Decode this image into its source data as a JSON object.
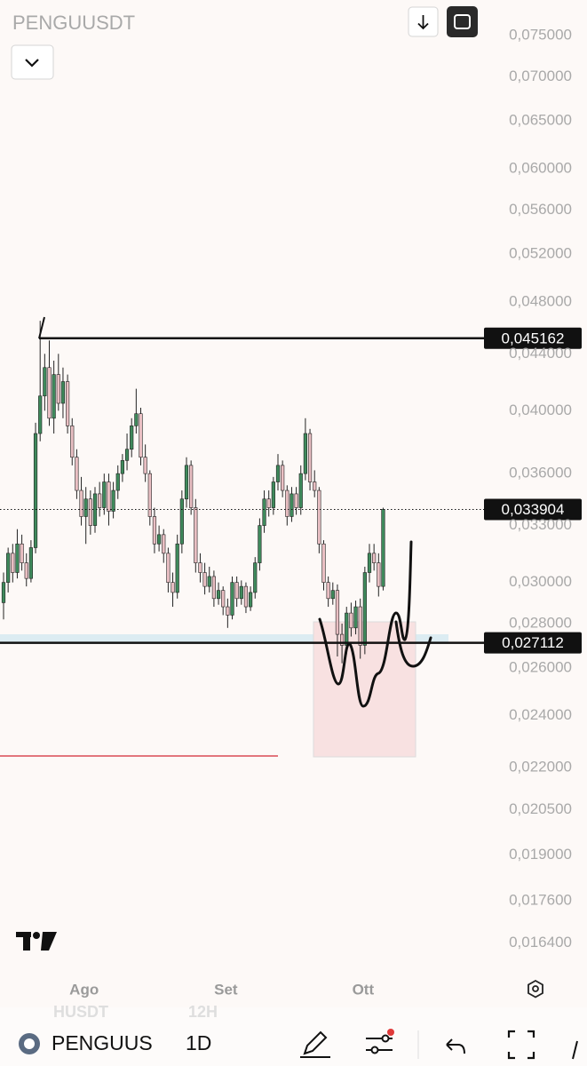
{
  "header": {
    "title": "PENGUUSDT"
  },
  "chart_data": {
    "type": "candlestick",
    "categories": [
      null,
      null,
      null,
      null,
      null,
      null,
      null,
      null,
      null,
      null,
      null,
      null,
      null,
      null,
      null,
      null,
      null,
      null,
      "Ago",
      null,
      null,
      null,
      null,
      null,
      null,
      null,
      null,
      null,
      null,
      null,
      null,
      null,
      null,
      null,
      null,
      null,
      null,
      null,
      null,
      null,
      null,
      null,
      null,
      null,
      null,
      null,
      null,
      null,
      null,
      "Set",
      null,
      null,
      null,
      null,
      null,
      null,
      null,
      null,
      null,
      null,
      null,
      null,
      null,
      null,
      null,
      null,
      null,
      null,
      null,
      null,
      null,
      null,
      null,
      null,
      null,
      null,
      null,
      null,
      null,
      "Ott",
      null,
      null,
      null,
      null
    ],
    "open": [
      0.029,
      0.03,
      0.0315,
      0.0305,
      0.032,
      0.031,
      0.0302,
      0.0318,
      0.0385,
      0.041,
      0.043,
      0.0395,
      0.0425,
      0.0405,
      0.042,
      0.039,
      0.037,
      0.035,
      0.0335,
      0.0345,
      0.033,
      0.0348,
      0.034,
      0.0355,
      0.0338,
      0.035,
      0.036,
      0.0368,
      0.0375,
      0.039,
      0.0398,
      0.037,
      0.036,
      0.0335,
      0.032,
      0.0325,
      0.0315,
      0.03,
      0.0295,
      0.032,
      0.0345,
      0.0365,
      0.034,
      0.031,
      0.0305,
      0.0298,
      0.0303,
      0.0292,
      0.0296,
      0.0288,
      0.0284,
      0.03,
      0.0292,
      0.0298,
      0.0288,
      0.0295,
      0.031,
      0.033,
      0.0345,
      0.034,
      0.0355,
      0.0365,
      0.035,
      0.0335,
      0.0348,
      0.034,
      0.036,
      0.0385,
      0.0355,
      0.035,
      0.032,
      0.03,
      0.0292,
      0.0296,
      0.0275,
      0.027,
      0.0285,
      0.0278,
      0.0288,
      0.027,
      0.0305,
      0.0315,
      0.031,
      0.0298
    ],
    "high": [
      0.0305,
      0.0318,
      0.032,
      0.0328,
      0.0325,
      0.0315,
      0.0322,
      0.0392,
      0.0465,
      0.044,
      0.045,
      0.0435,
      0.044,
      0.043,
      0.0425,
      0.0395,
      0.0375,
      0.0358,
      0.0352,
      0.035,
      0.0352,
      0.0355,
      0.036,
      0.036,
      0.0355,
      0.0365,
      0.0372,
      0.0385,
      0.0395,
      0.0415,
      0.0402,
      0.0378,
      0.0362,
      0.034,
      0.033,
      0.0328,
      0.0318,
      0.0305,
      0.0325,
      0.035,
      0.037,
      0.0368,
      0.0345,
      0.0315,
      0.031,
      0.0308,
      0.0306,
      0.03,
      0.0298,
      0.0292,
      0.0303,
      0.0303,
      0.0301,
      0.03,
      0.0298,
      0.0313,
      0.0334,
      0.035,
      0.035,
      0.0358,
      0.0372,
      0.0368,
      0.0353,
      0.0352,
      0.0352,
      0.0365,
      0.0395,
      0.0388,
      0.0362,
      0.0352,
      0.0322,
      0.0303,
      0.03,
      0.0299,
      0.028,
      0.0288,
      0.029,
      0.0291,
      0.0292,
      0.0308,
      0.032,
      0.032,
      0.0315,
      0.034
    ],
    "low": [
      0.0282,
      0.0295,
      0.03,
      0.0302,
      0.0306,
      0.0298,
      0.03,
      0.0315,
      0.038,
      0.04,
      0.039,
      0.0385,
      0.04,
      0.0395,
      0.0385,
      0.0365,
      0.0345,
      0.033,
      0.032,
      0.0325,
      0.0326,
      0.0335,
      0.0336,
      0.033,
      0.0334,
      0.0345,
      0.0355,
      0.0362,
      0.037,
      0.0385,
      0.0365,
      0.0355,
      0.033,
      0.0315,
      0.0316,
      0.031,
      0.0295,
      0.0288,
      0.0292,
      0.0315,
      0.034,
      0.0336,
      0.0305,
      0.03,
      0.0294,
      0.0295,
      0.0288,
      0.0289,
      0.0284,
      0.0278,
      0.0282,
      0.0288,
      0.0289,
      0.0285,
      0.0286,
      0.0292,
      0.0306,
      0.0326,
      0.0335,
      0.0336,
      0.035,
      0.0346,
      0.033,
      0.0332,
      0.0336,
      0.0336,
      0.0356,
      0.035,
      0.0346,
      0.0315,
      0.0296,
      0.0288,
      0.0289,
      0.0265,
      0.0262,
      0.0266,
      0.0274,
      0.0275,
      0.0264,
      0.0266,
      0.03,
      0.0306,
      0.0293,
      0.0296
    ],
    "close": [
      0.03,
      0.0315,
      0.0305,
      0.032,
      0.031,
      0.0302,
      0.0318,
      0.0385,
      0.041,
      0.043,
      0.0395,
      0.0425,
      0.0405,
      0.042,
      0.039,
      0.037,
      0.035,
      0.0335,
      0.0345,
      0.033,
      0.0348,
      0.034,
      0.0355,
      0.0338,
      0.035,
      0.036,
      0.0368,
      0.0375,
      0.039,
      0.0398,
      0.037,
      0.036,
      0.0335,
      0.032,
      0.0325,
      0.0315,
      0.03,
      0.0295,
      0.032,
      0.0345,
      0.0365,
      0.034,
      0.031,
      0.0305,
      0.0298,
      0.0303,
      0.0292,
      0.0296,
      0.0288,
      0.0284,
      0.03,
      0.0292,
      0.0298,
      0.0288,
      0.0295,
      0.031,
      0.033,
      0.0345,
      0.034,
      0.0355,
      0.0365,
      0.035,
      0.0335,
      0.0348,
      0.034,
      0.036,
      0.0385,
      0.0355,
      0.035,
      0.032,
      0.03,
      0.0292,
      0.0296,
      0.0275,
      0.027,
      0.0285,
      0.0278,
      0.0288,
      0.027,
      0.0305,
      0.0315,
      0.031,
      0.0298,
      0.033904
    ],
    "up_color": "#3f8a5c",
    "down_color": "#e9bfc3",
    "log_scale": true,
    "ylim": [
      0.0156,
      0.0796
    ],
    "yticks": [
      {
        "value": 0.075,
        "label": "0,075000"
      },
      {
        "value": 0.07,
        "label": "0,070000"
      },
      {
        "value": 0.065,
        "label": "0,065000"
      },
      {
        "value": 0.06,
        "label": "0,060000"
      },
      {
        "value": 0.056,
        "label": "0,056000"
      },
      {
        "value": 0.052,
        "label": "0,052000"
      },
      {
        "value": 0.048,
        "label": "0,048000"
      },
      {
        "value": 0.044,
        "label": "0,044000"
      },
      {
        "value": 0.04,
        "label": "0,040000"
      },
      {
        "value": 0.036,
        "label": "0,036000"
      },
      {
        "value": 0.033,
        "label": "0,033000"
      },
      {
        "value": 0.03,
        "label": "0,030000"
      },
      {
        "value": 0.028,
        "label": "0,028000"
      },
      {
        "value": 0.026,
        "label": "0,026000"
      },
      {
        "value": 0.024,
        "label": "0,024000"
      },
      {
        "value": 0.022,
        "label": "0,022000"
      },
      {
        "value": 0.0205,
        "label": "0,020500"
      },
      {
        "value": 0.019,
        "label": "0,019000"
      },
      {
        "value": 0.0176,
        "label": "0,017600"
      },
      {
        "value": 0.0164,
        "label": "0,016400"
      }
    ],
    "price_lines": [
      {
        "value": 0.045162,
        "label": "0,045162",
        "style": "solid"
      },
      {
        "value": 0.033904,
        "label": "0,033904",
        "style": "dotted"
      },
      {
        "value": 0.027112,
        "label": "0,027112",
        "style": "solid"
      }
    ]
  },
  "toolbar": {
    "symbol": "PENGUUS",
    "interval": "1D",
    "ghost_symbol": "HUSDT",
    "ghost_interval": "12H"
  }
}
